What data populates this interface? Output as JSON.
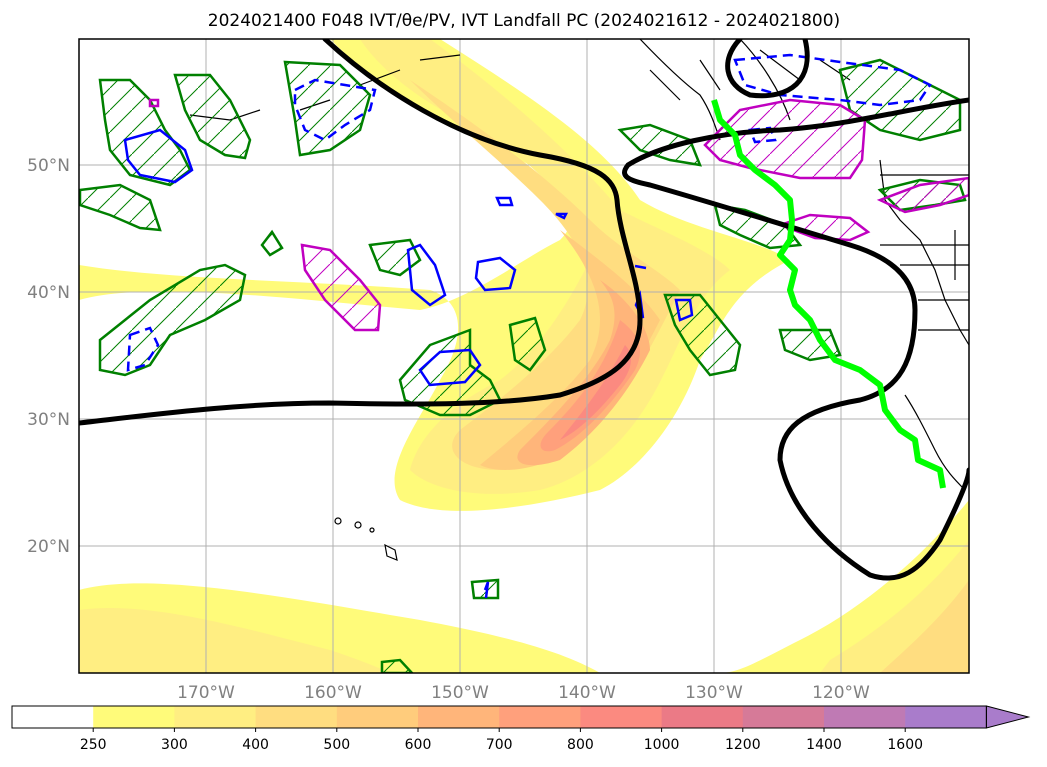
{
  "title": "2024021400 F048 IVT/θe/PV, IVT Landfall PC (2024021612 - 2024021800)",
  "map": {
    "lat_labels": [
      "50°N",
      "40°N",
      "30°N",
      "20°N"
    ],
    "lon_labels": [
      "170°W",
      "160°W",
      "150°W",
      "140°W",
      "130°W",
      "120°W"
    ],
    "extent": {
      "lon": [
        -180,
        -110
      ],
      "lat": [
        10,
        60
      ]
    },
    "grid": true
  },
  "colorbar": {
    "ticks": [
      "250",
      "300",
      "400",
      "500",
      "600",
      "700",
      "800",
      "1000",
      "1200",
      "1400",
      "1600"
    ],
    "colors": [
      "#ffffff",
      "#fffb7a",
      "#ffee82",
      "#ffdd80",
      "#ffcc7c",
      "#ffb57a",
      "#ffa07c",
      "#fb8a80",
      "#eb7a86",
      "#d67a98",
      "#bf7ab4",
      "#a97ccb"
    ],
    "extend": "max"
  },
  "colors": {
    "ivt_fill": "#ffcc7c",
    "theta_e_contour": "#000000",
    "pv_negative": "#0000ff",
    "pv_positive_green": "#008000",
    "pv_positive_magenta": "#c000c0",
    "landfall_line": "#00ff00",
    "coastline": "#000000"
  }
}
